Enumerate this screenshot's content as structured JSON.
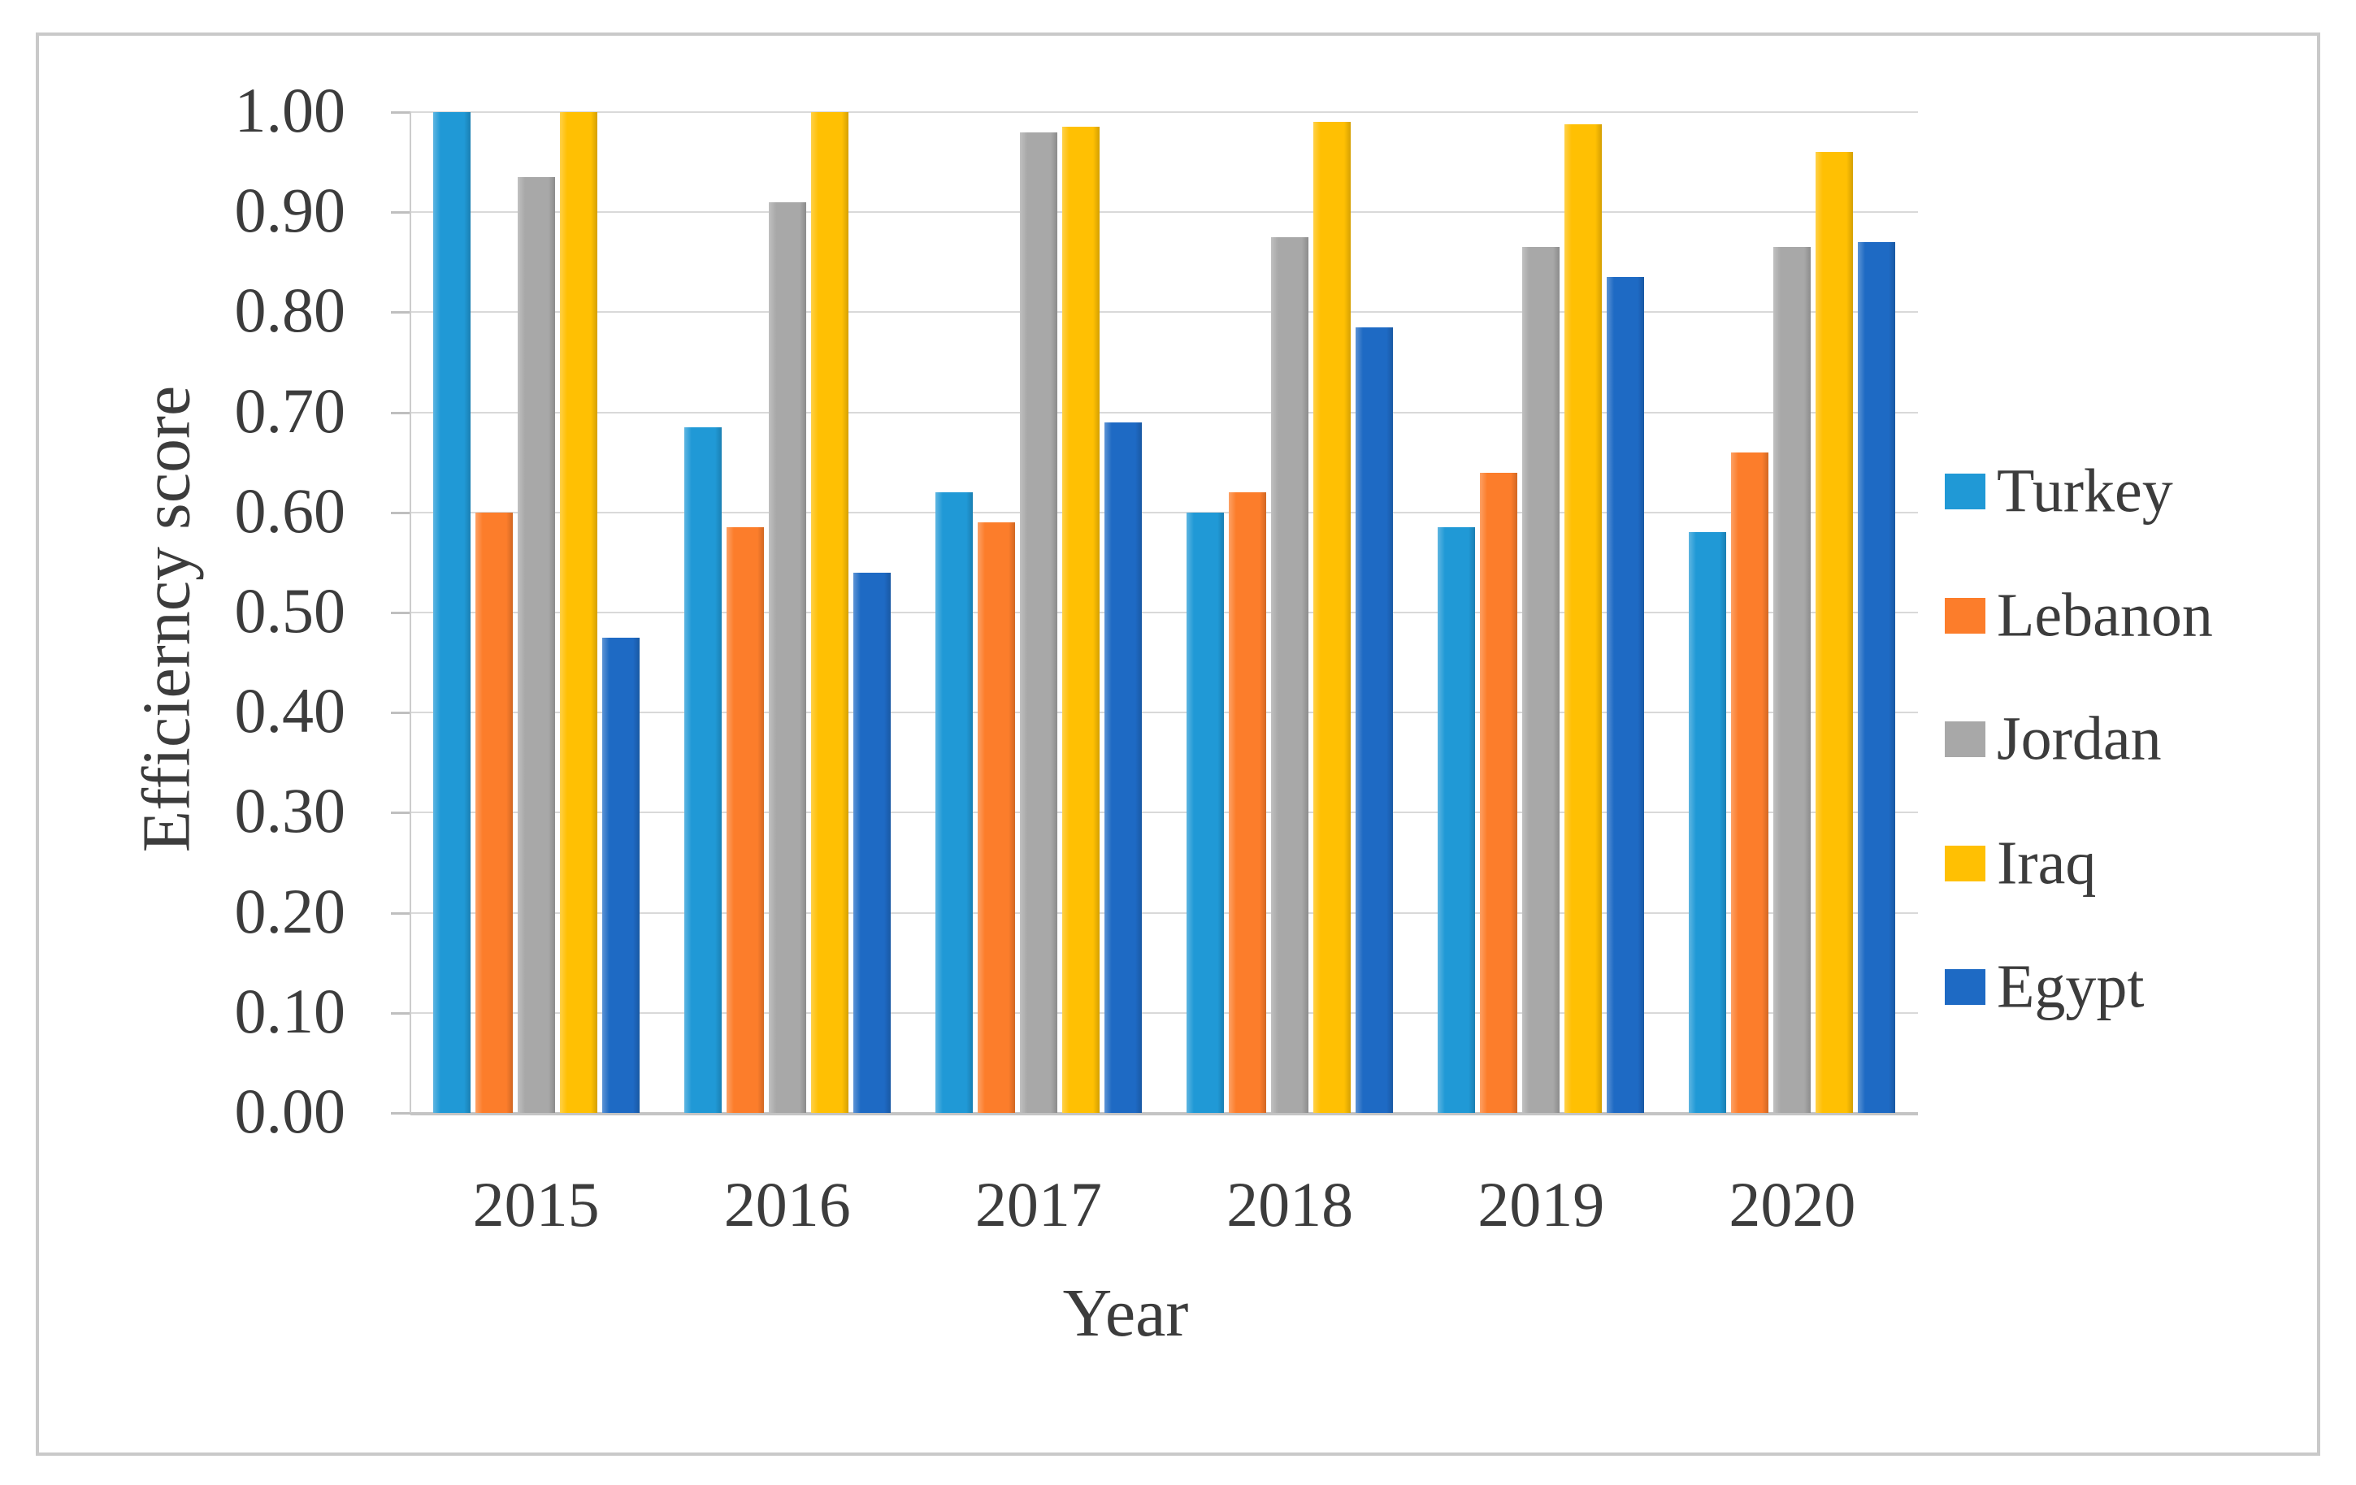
{
  "chart_data": {
    "type": "bar",
    "title": "",
    "xlabel": "Year",
    "ylabel": "Efficierncy score",
    "categories": [
      "2015",
      "2016",
      "2017",
      "2018",
      "2019",
      "2020"
    ],
    "series": [
      {
        "name": "Turkey",
        "color": "#2099D6",
        "values": [
          1.0,
          0.685,
          0.62,
          0.6,
          0.585,
          0.58
        ]
      },
      {
        "name": "Lebanon",
        "color": "#FC7D2B",
        "values": [
          0.6,
          0.585,
          0.59,
          0.62,
          0.64,
          0.66
        ]
      },
      {
        "name": "Jordan",
        "color": "#A8A8A8",
        "values": [
          0.935,
          0.91,
          0.98,
          0.875,
          0.865,
          0.865
        ]
      },
      {
        "name": "Iraq",
        "color": "#FFC003",
        "values": [
          1.0,
          1.0,
          0.985,
          0.99,
          0.988,
          0.96
        ]
      },
      {
        "name": "Egypt",
        "color": "#1E6AC4",
        "values": [
          0.475,
          0.54,
          0.69,
          0.785,
          0.835,
          0.87
        ]
      }
    ],
    "ylim": [
      0.0,
      1.0
    ],
    "ytick_step": 0.1,
    "ytick_labels": [
      "0.00",
      "0.10",
      "0.20",
      "0.30",
      "0.40",
      "0.50",
      "0.60",
      "0.70",
      "0.80",
      "0.90",
      "1.00"
    ],
    "grid": true,
    "legend_position": "right",
    "axis_color": "#c9c9c9",
    "gridline_color": "#d9d9d9",
    "text_color": "#3c3c3c"
  }
}
